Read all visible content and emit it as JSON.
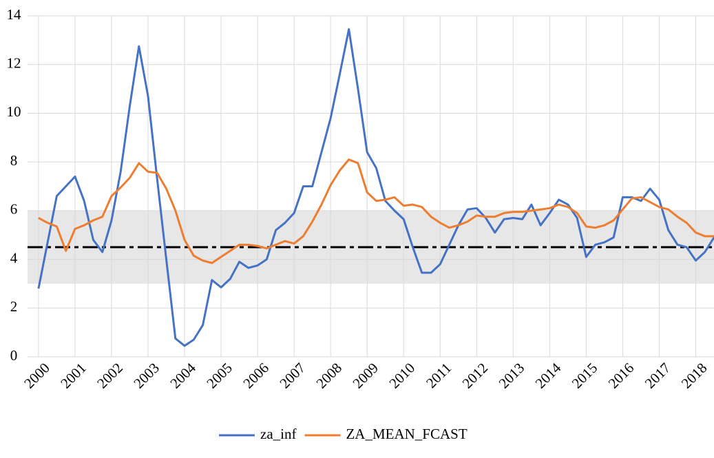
{
  "chart_data": {
    "type": "line",
    "x": [
      2000,
      2000.25,
      2000.5,
      2000.75,
      2001,
      2001.25,
      2001.5,
      2001.75,
      2002,
      2002.25,
      2002.5,
      2002.75,
      2003,
      2003.25,
      2003.5,
      2003.75,
      2004,
      2004.25,
      2004.5,
      2004.75,
      2005,
      2005.25,
      2005.5,
      2005.75,
      2006,
      2006.25,
      2006.5,
      2006.75,
      2007,
      2007.25,
      2007.5,
      2007.75,
      2008,
      2008.25,
      2008.5,
      2008.75,
      2009,
      2009.25,
      2009.5,
      2009.75,
      2010,
      2010.25,
      2010.5,
      2010.75,
      2011,
      2011.25,
      2011.5,
      2011.75,
      2012,
      2012.25,
      2012.5,
      2012.75,
      2013,
      2013.25,
      2013.5,
      2013.75,
      2014,
      2014.25,
      2014.5,
      2014.75,
      2015,
      2015.25,
      2015.5,
      2015.75,
      2016,
      2016.25,
      2016.5,
      2016.75,
      2017,
      2017.25,
      2017.5,
      2017.75,
      2018,
      2018.25,
      2018.5
    ],
    "series": [
      {
        "name": "za_inf",
        "color": "#4472c4",
        "values": [
          2.8,
          4.7,
          6.6,
          7.0,
          7.4,
          6.4,
          4.8,
          4.3,
          5.6,
          7.6,
          10.3,
          12.75,
          10.7,
          7.3,
          4.0,
          0.75,
          0.45,
          0.7,
          1.3,
          3.15,
          2.85,
          3.2,
          3.9,
          3.65,
          3.75,
          4.0,
          5.2,
          5.5,
          5.9,
          7.0,
          7.0,
          8.4,
          9.8,
          11.6,
          13.45,
          11.0,
          8.4,
          7.75,
          6.4,
          6.0,
          5.65,
          4.5,
          3.45,
          3.45,
          3.8,
          4.6,
          5.4,
          6.05,
          6.1,
          5.7,
          5.1,
          5.65,
          5.7,
          5.65,
          6.25,
          5.4,
          5.9,
          6.45,
          6.25,
          5.7,
          4.1,
          4.6,
          4.7,
          4.9,
          6.55,
          6.55,
          6.4,
          6.9,
          6.45,
          5.2,
          4.6,
          4.5,
          3.95,
          4.3,
          4.9
        ]
      },
      {
        "name": "ZA_MEAN_FCAST",
        "color": "#ed7d31",
        "values": [
          5.7,
          5.5,
          5.35,
          4.35,
          5.25,
          5.4,
          5.6,
          5.75,
          6.6,
          6.95,
          7.35,
          7.95,
          7.6,
          7.55,
          6.9,
          6.0,
          4.8,
          4.15,
          3.95,
          3.85,
          4.1,
          4.35,
          4.6,
          4.6,
          4.55,
          4.45,
          4.6,
          4.75,
          4.65,
          4.95,
          5.55,
          6.25,
          7.05,
          7.65,
          8.1,
          7.95,
          6.75,
          6.4,
          6.45,
          6.55,
          6.2,
          6.25,
          6.15,
          5.75,
          5.5,
          5.3,
          5.4,
          5.55,
          5.8,
          5.75,
          5.75,
          5.9,
          5.95,
          5.95,
          6.0,
          6.05,
          6.1,
          6.25,
          6.15,
          5.9,
          5.35,
          5.3,
          5.4,
          5.6,
          6.05,
          6.5,
          6.55,
          6.35,
          6.15,
          6.05,
          5.75,
          5.5,
          5.1,
          4.95,
          4.95
        ]
      }
    ],
    "band": [
      3,
      6
    ],
    "band_color": "#e7e7e7",
    "target": 4.5,
    "target_color": "#000000",
    "xlim": [
      1999.7,
      2018.5
    ],
    "xticks": [
      2000,
      2001,
      2002,
      2003,
      2004,
      2005,
      2006,
      2007,
      2008,
      2009,
      2010,
      2011,
      2012,
      2013,
      2014,
      2015,
      2016,
      2017,
      2018
    ],
    "ylim": [
      0,
      14
    ],
    "yticks": [
      0,
      2,
      4,
      6,
      8,
      10,
      12,
      14
    ],
    "grid": true,
    "legend": "bottom"
  }
}
